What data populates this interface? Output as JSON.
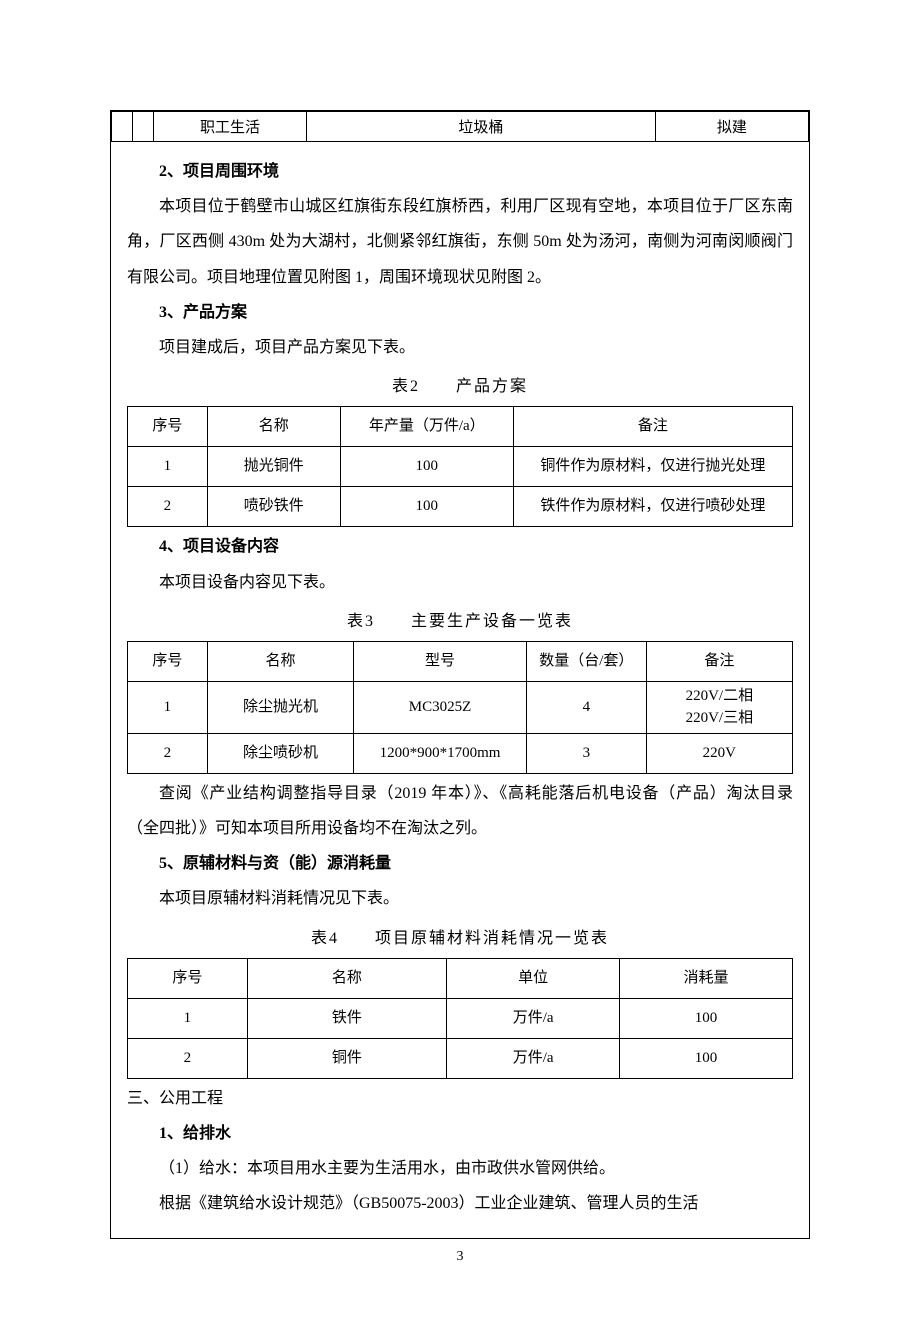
{
  "topTable": {
    "cells": [
      "",
      "",
      "职工生活",
      "垃圾桶",
      "拟建"
    ]
  },
  "sec2": {
    "heading": "2、项目周围环境",
    "para": "本项目位于鹤壁市山城区红旗街东段红旗桥西，利用厂区现有空地，本项目位于厂区东南角，厂区西侧 430m 处为大湖村，北侧紧邻红旗街，东侧 50m 处为汤河，南侧为河南闵顺阀门有限公司。项目地理位置见附图 1，周围环境现状见附图 2。"
  },
  "sec3": {
    "heading": "3、产品方案",
    "para": "项目建成后，项目产品方案见下表。"
  },
  "table2": {
    "caption": "表2　　产品方案",
    "headers": [
      "序号",
      "名称",
      "年产量（万件/a）",
      "备注"
    ],
    "rows": [
      [
        "1",
        "抛光铜件",
        "100",
        "铜件作为原材料，仅进行抛光处理"
      ],
      [
        "2",
        "喷砂铁件",
        "100",
        "铁件作为原材料，仅进行喷砂处理"
      ]
    ]
  },
  "sec4": {
    "heading": "4、项目设备内容",
    "para": "本项目设备内容见下表。"
  },
  "table3": {
    "caption": "表3　　主要生产设备一览表",
    "headers": [
      "序号",
      "名称",
      "型号",
      "数量（台/套）",
      "备注"
    ],
    "rows": [
      [
        "1",
        "除尘抛光机",
        "MC3025Z",
        "4",
        "220V/二相\n220V/三相"
      ],
      [
        "2",
        "除尘喷砂机",
        "1200*900*1700mm",
        "3",
        "220V"
      ]
    ]
  },
  "postTable3Para": "查阅《产业结构调整指导目录（2019 年本）》、《高耗能落后机电设备（产品）淘汰目录（全四批）》可知本项目所用设备均不在淘汰之列。",
  "sec5": {
    "heading": "5、原辅材料与资（能）源消耗量",
    "para": "本项目原辅材料消耗情况见下表。"
  },
  "table4": {
    "caption": "表4　　项目原辅材料消耗情况一览表",
    "headers": [
      "序号",
      "名称",
      "单位",
      "消耗量"
    ],
    "rows": [
      [
        "1",
        "铁件",
        "万件/a",
        "100"
      ],
      [
        "2",
        "铜件",
        "万件/a",
        "100"
      ]
    ]
  },
  "secThree": {
    "heading": "三、公用工程",
    "sub1": "1、给排水",
    "line1": "（1）给水：本项目用水主要为生活用水，由市政供水管网供给。",
    "line2": "根据《建筑给水设计规范》（GB50075-2003）工业企业建筑、管理人员的生活"
  },
  "pageNumber": "3"
}
